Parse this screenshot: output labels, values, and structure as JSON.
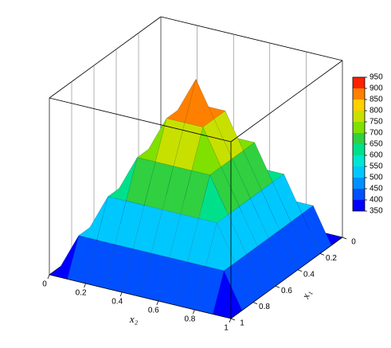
{
  "chart_data": {
    "type": "surface",
    "x1_label": "x₁",
    "x2_label": "x₂",
    "x1": [
      0,
      0.1,
      0.2,
      0.3,
      0.4,
      0.5,
      0.6,
      0.7,
      0.8,
      0.9,
      1
    ],
    "x2": [
      0,
      0.1,
      0.2,
      0.3,
      0.4,
      0.5,
      0.6,
      0.7,
      0.8,
      0.9,
      1
    ],
    "z": [
      [
        350,
        350,
        350,
        350,
        350,
        350,
        350,
        350,
        350,
        350,
        350
      ],
      [
        350,
        470,
        470,
        470,
        470,
        470,
        470,
        470,
        470,
        470,
        350
      ],
      [
        350,
        470,
        590,
        590,
        590,
        590,
        590,
        590,
        590,
        470,
        350
      ],
      [
        350,
        470,
        590,
        710,
        710,
        710,
        710,
        710,
        590,
        470,
        350
      ],
      [
        350,
        470,
        590,
        710,
        830,
        830,
        830,
        710,
        590,
        470,
        350
      ],
      [
        350,
        470,
        590,
        710,
        830,
        950,
        830,
        710,
        590,
        470,
        350
      ],
      [
        350,
        470,
        590,
        710,
        830,
        830,
        830,
        710,
        590,
        470,
        350
      ],
      [
        350,
        470,
        590,
        710,
        710,
        710,
        710,
        710,
        590,
        470,
        350
      ],
      [
        350,
        470,
        590,
        590,
        590,
        590,
        590,
        590,
        590,
        470,
        350
      ],
      [
        350,
        470,
        470,
        470,
        470,
        470,
        470,
        470,
        470,
        470,
        350
      ],
      [
        350,
        350,
        350,
        350,
        350,
        350,
        350,
        350,
        350,
        350,
        350
      ]
    ],
    "x1lim": [
      0,
      1
    ],
    "x2lim": [
      0,
      1
    ],
    "zlim": [
      350,
      950
    ],
    "x1ticks": [
      0,
      0.2,
      0.4,
      0.6,
      0.8,
      1
    ],
    "x2ticks": [
      0,
      0.2,
      0.4,
      0.6,
      0.8,
      1
    ],
    "cticks": [
      350,
      400,
      450,
      500,
      550,
      600,
      650,
      700,
      750,
      800,
      850,
      900,
      950
    ],
    "colormap": [
      "#0000ff",
      "#0050ff",
      "#0090ff",
      "#00c8ff",
      "#00e6d0",
      "#00e08a",
      "#30d040",
      "#80e000",
      "#c8e000",
      "#ffd000",
      "#ff8000",
      "#ff2000"
    ],
    "grid": true
  }
}
